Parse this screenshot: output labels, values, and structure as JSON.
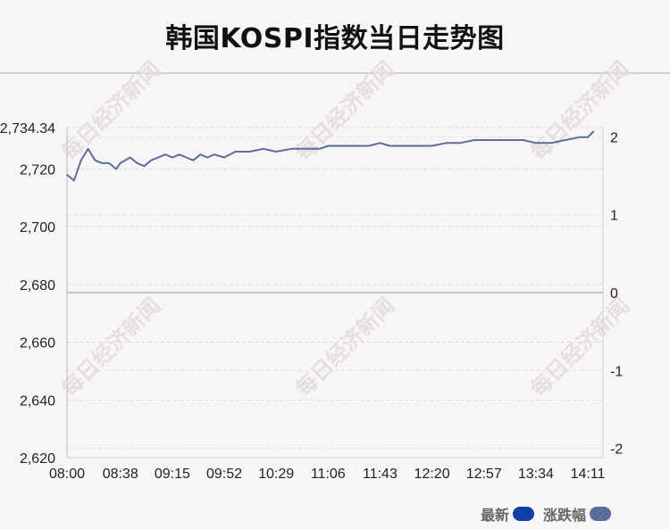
{
  "title": "韩国KOSPI指数当日走势图",
  "watermark_text": "每日经济新闻",
  "chart_data": {
    "type": "line",
    "x_ticks": [
      "08:00",
      "08:38",
      "09:15",
      "09:52",
      "10:29",
      "11:06",
      "11:43",
      "12:20",
      "12:57",
      "13:34",
      "14:11"
    ],
    "y_left_ticks": [
      "2,734.34",
      "2,720",
      "2,700",
      "2,680",
      "2,660",
      "2,640",
      "2,620"
    ],
    "y_left_tick_values": [
      2734.34,
      2720,
      2700,
      2680,
      2660,
      2640,
      2620
    ],
    "y_right_ticks": [
      "2",
      "1",
      "0",
      "-1",
      "-2"
    ],
    "y_right_tick_values": [
      2,
      1,
      0,
      -1,
      -2
    ],
    "ylim_left": [
      2620,
      2734.34
    ],
    "ylim_right": [
      -2.12,
      2.12
    ],
    "prev_close": 2677.0,
    "grid": true,
    "legend_position": "bottom-right",
    "series": [
      {
        "name": "最新",
        "color": "#0d3fa6",
        "x": [
          "08:00",
          "08:05",
          "08:10",
          "08:15",
          "08:20",
          "08:25",
          "08:30",
          "08:35",
          "08:38",
          "08:45",
          "08:50",
          "08:55",
          "09:00",
          "09:05",
          "09:10",
          "09:15",
          "09:20",
          "09:25",
          "09:30",
          "09:35",
          "09:40",
          "09:45",
          "09:52",
          "10:00",
          "10:10",
          "10:20",
          "10:29",
          "10:40",
          "10:50",
          "11:00",
          "11:06",
          "11:15",
          "11:25",
          "11:35",
          "11:43",
          "11:50",
          "12:00",
          "12:10",
          "12:20",
          "12:30",
          "12:40",
          "12:50",
          "12:57",
          "13:05",
          "13:15",
          "13:25",
          "13:34",
          "13:45",
          "13:55",
          "14:05",
          "14:11",
          "14:15"
        ],
        "values": [
          2718,
          2716,
          2723,
          2727,
          2723,
          2722,
          2722,
          2720,
          2722,
          2724,
          2722,
          2721,
          2723,
          2724,
          2725,
          2724,
          2725,
          2724,
          2723,
          2725,
          2724,
          2725,
          2724,
          2726,
          2726,
          2727,
          2726,
          2727,
          2727,
          2727,
          2728,
          2728,
          2728,
          2728,
          2729,
          2728,
          2728,
          2728,
          2728,
          2729,
          2729,
          2730,
          2730,
          2730,
          2730,
          2730,
          2729,
          2729,
          2730,
          2731,
          2731,
          2733
        ]
      },
      {
        "name": "涨跌幅",
        "color": "#5b6d99"
      }
    ]
  }
}
